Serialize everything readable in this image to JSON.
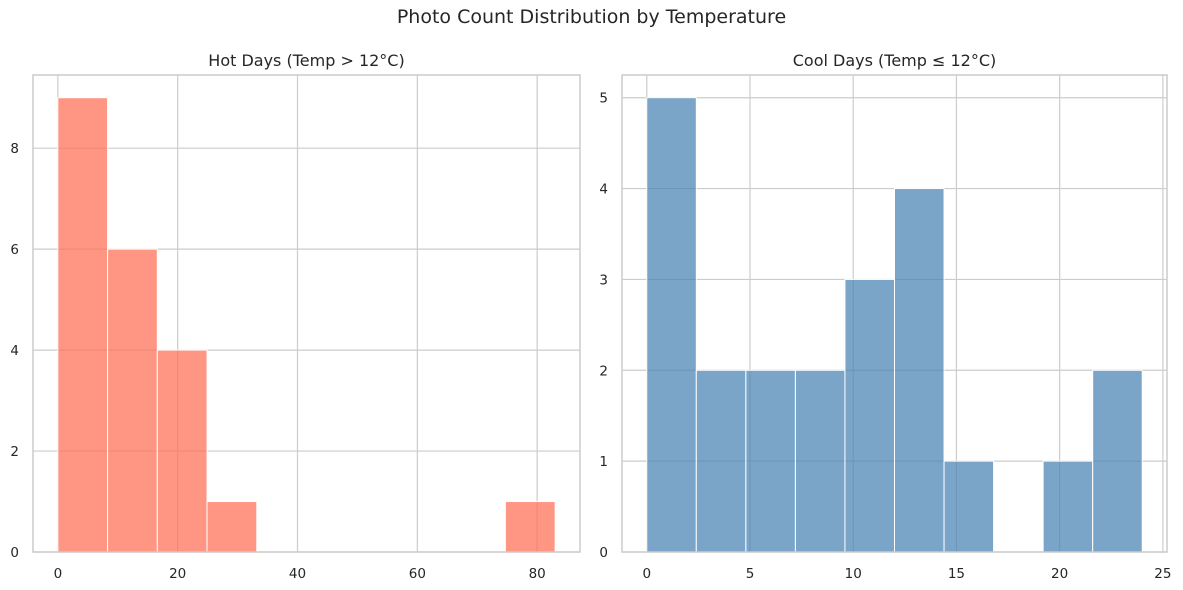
{
  "figure": {
    "title": "Photo Count Distribution by Temperature"
  },
  "chart_data": [
    {
      "type": "bar",
      "title": "Hot Days (Temp > 12°C)",
      "xlabel": "",
      "ylabel": "",
      "bin_edges": [
        0,
        8.3,
        16.6,
        24.9,
        33.2,
        41.5,
        49.8,
        58.1,
        66.4,
        74.7,
        83
      ],
      "values": [
        9,
        6,
        4,
        1,
        0,
        0,
        0,
        0,
        0,
        1
      ],
      "xlim": [
        -4.15,
        87.15
      ],
      "ylim": [
        0,
        9.45
      ],
      "xticks": [
        0,
        20,
        40,
        60,
        80
      ],
      "yticks": [
        0,
        2,
        4,
        6,
        8
      ],
      "color": "#ff6e54",
      "grid": true
    },
    {
      "type": "bar",
      "title": "Cool Days (Temp ≤ 12°C)",
      "xlabel": "",
      "ylabel": "",
      "bin_edges": [
        0,
        2.4,
        4.8,
        7.2,
        9.6,
        12,
        14.4,
        16.8,
        19.2,
        21.6,
        24
      ],
      "values": [
        5,
        2,
        2,
        2,
        3,
        4,
        1,
        0,
        1,
        2
      ],
      "xlim": [
        -1.2,
        25.2
      ],
      "ylim": [
        0,
        5.25
      ],
      "xticks": [
        0,
        5,
        10,
        15,
        20,
        25
      ],
      "yticks": [
        0,
        1,
        2,
        3,
        4,
        5
      ],
      "color": "#4682b4",
      "grid": true
    }
  ]
}
